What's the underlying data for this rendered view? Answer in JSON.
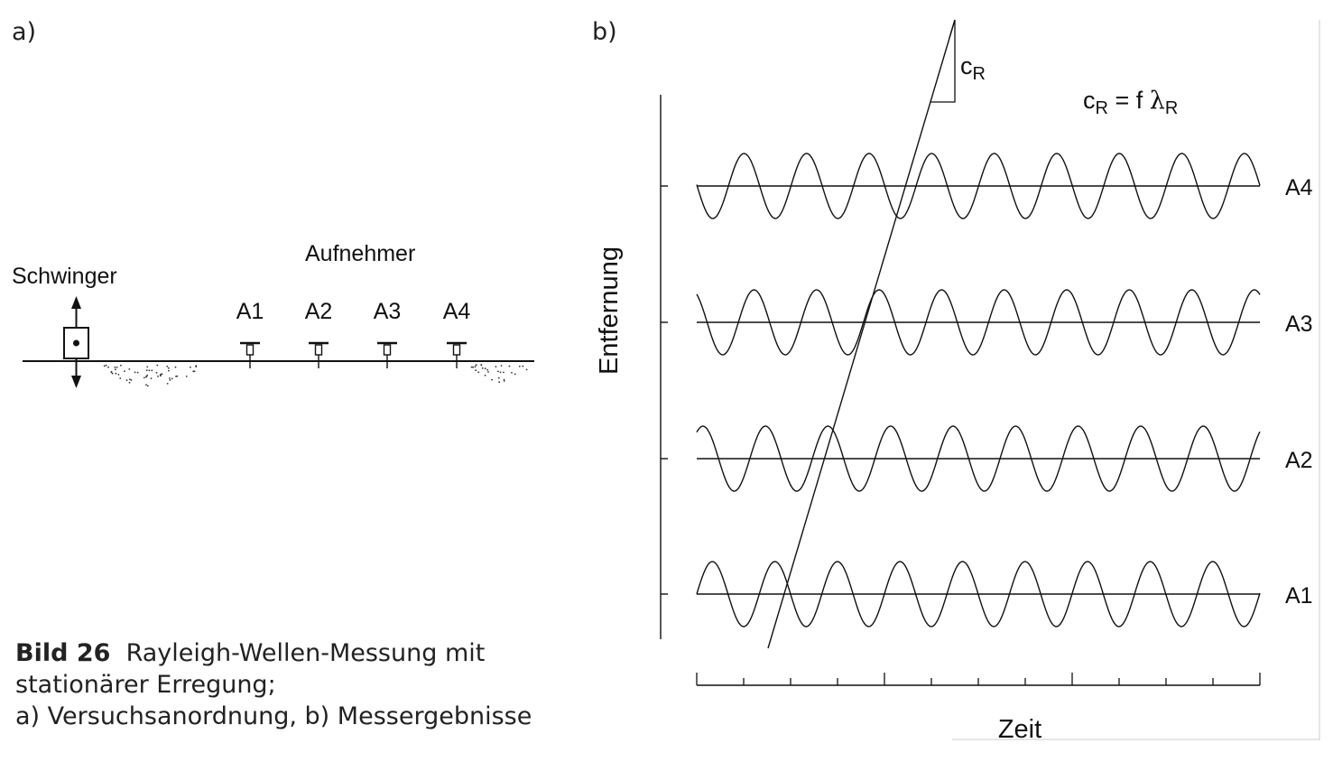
{
  "panel_a": {
    "label": "a)",
    "source_label": "Schwinger",
    "receivers_title": "Aufnehmer",
    "receivers": [
      "A1",
      "A2",
      "A3",
      "A4"
    ]
  },
  "panel_b": {
    "label": "b)",
    "slope_label_main": "c",
    "slope_label_sub": "R",
    "formula": {
      "c": "c",
      "sub1": "R",
      "eq": " = f ",
      "lambda": "λ",
      "sub2": "R"
    },
    "y_axis_label": "Entfernung",
    "x_axis_label": "Zeit",
    "traces": [
      "A1",
      "A2",
      "A3",
      "A4"
    ]
  },
  "caption": {
    "number": "Bild 26",
    "line1": "Rayleigh-Wellen-Messung mit",
    "line2": "stationärer Erregung;",
    "line3": "a) Versuchsanordnung, b) Messergebnisse"
  },
  "colors": {
    "ink": "#111111",
    "text": "#222222",
    "background": "#ffffff"
  }
}
